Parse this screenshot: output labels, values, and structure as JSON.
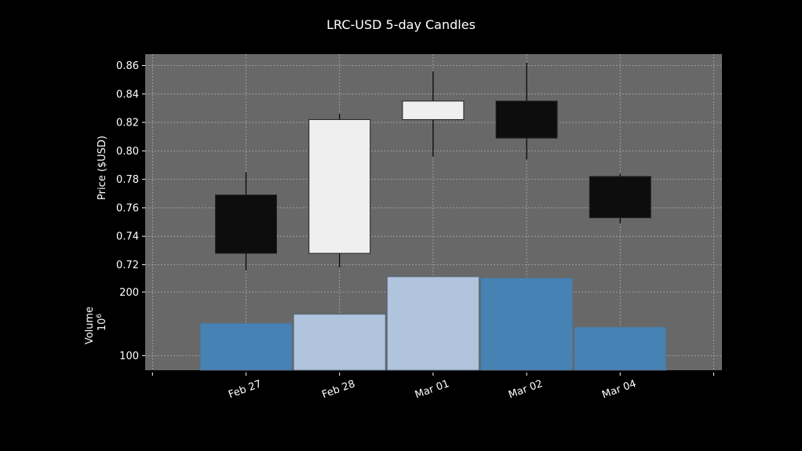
{
  "chart_data": {
    "type": "candlestick",
    "title": "LRC-USD 5-day Candles",
    "categories": [
      "Feb 27",
      "Feb 28",
      "Mar 01",
      "Mar 02",
      "Mar 04"
    ],
    "price": {
      "ylabel": "Price ($USD)",
      "ylim": [
        0.712,
        0.868
      ],
      "yticks": [
        "0.72",
        "0.74",
        "0.76",
        "0.78",
        "0.80",
        "0.82",
        "0.84",
        "0.86"
      ],
      "candles": [
        {
          "open": 0.769,
          "high": 0.785,
          "low": 0.716,
          "close": 0.728,
          "direction": "down"
        },
        {
          "open": 0.728,
          "high": 0.826,
          "low": 0.718,
          "close": 0.822,
          "direction": "up"
        },
        {
          "open": 0.822,
          "high": 0.856,
          "low": 0.796,
          "close": 0.835,
          "direction": "up"
        },
        {
          "open": 0.835,
          "high": 0.862,
          "low": 0.794,
          "close": 0.809,
          "direction": "down"
        },
        {
          "open": 0.782,
          "high": 0.784,
          "low": 0.749,
          "close": 0.753,
          "direction": "down"
        }
      ]
    },
    "volume": {
      "ylabel": "Volume",
      "multiplier": "10^6",
      "ylim": [
        77,
        225
      ],
      "yticks": [
        "100",
        "200"
      ],
      "values": [
        151,
        165,
        224,
        222,
        145
      ]
    },
    "grid": true,
    "colors": {
      "background": "#000000",
      "plot_background": "#686868",
      "up_candle": "#efefef",
      "down_candle": "#0d0d0d",
      "up_volume": "#b0c4de",
      "down_volume": "#4682b4",
      "grid": "#bbbbbb"
    }
  }
}
